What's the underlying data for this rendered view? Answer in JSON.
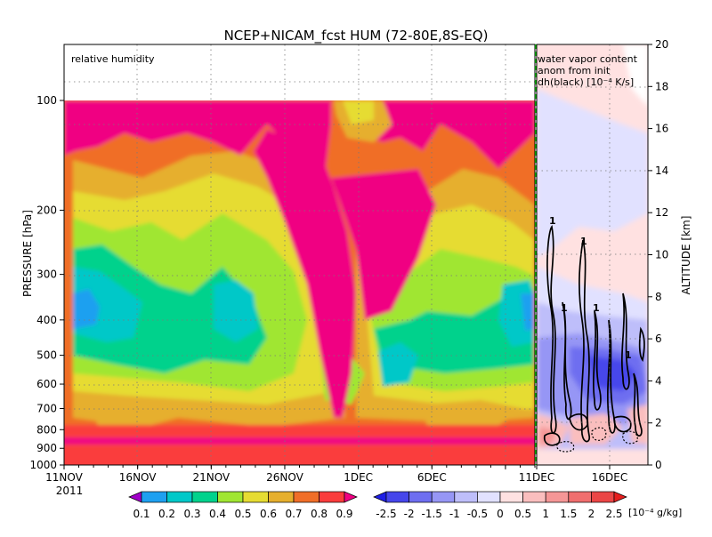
{
  "title": "NCEP+NICAM_fcst HUM (72-80E,8S-EQ)",
  "chart_data": {
    "type": "heatmap",
    "title": "NCEP+NICAM_fcst HUM (72-80E,8S-EQ)",
    "panels": [
      {
        "label": "relative humidity",
        "field": "relative humidity (time-pressure section)",
        "x_ticks": [
          "11NOV",
          "16NOV",
          "21NOV",
          "26NOV",
          "1DEC",
          "6DEC",
          "11DEC"
        ],
        "year": "2011",
        "y_label": "PRESSURE [hPa]",
        "y_ticks": [
          "100",
          "200",
          "300",
          "400",
          "500",
          "600",
          "700",
          "800",
          "900",
          "1000"
        ],
        "ylim": [
          1000,
          100
        ]
      },
      {
        "label_lines": [
          "water vapor content",
          "anom from init",
          "dh(black) [10⁻⁴ K/s]"
        ],
        "field": "water vapor content anomaly from init",
        "x_ticks": [
          "11DEC",
          "16DEC"
        ],
        "y_label": "ALTITUDE [km]",
        "y_ticks": [
          "0",
          "2",
          "4",
          "6",
          "8",
          "10",
          "12",
          "14",
          "16",
          "18",
          "20"
        ],
        "ylim": [
          0,
          20
        ],
        "contour_labels": [
          "1",
          "1",
          "1",
          "1",
          "1"
        ]
      }
    ],
    "colorbars": [
      {
        "name": "relative humidity",
        "levels": [
          "0.1",
          "0.2",
          "0.3",
          "0.4",
          "0.5",
          "0.6",
          "0.7",
          "0.8",
          "0.9"
        ],
        "colors": [
          "#a000c8",
          "#1ea0f0",
          "#00c8c8",
          "#00d28c",
          "#a0e632",
          "#e6dc32",
          "#e6af2d",
          "#f06e28",
          "#fa3c3c",
          "#f00082"
        ]
      },
      {
        "name": "water vapor content anomaly",
        "levels": [
          "-2.5",
          "-2",
          "-1.5",
          "-1",
          "-0.5",
          "0",
          "0.5",
          "1",
          "1.5",
          "2",
          "2.5"
        ],
        "unit": "[10⁻⁴ g/kg]",
        "colors": [
          "#1e1ee6",
          "#4646eb",
          "#6e6ef0",
          "#9696f5",
          "#bebefa",
          "#e1e1ff",
          "#ffe1e1",
          "#fabebe",
          "#f59696",
          "#f06e6e",
          "#eb4646",
          "#e61e1e"
        ]
      }
    ],
    "grid": true
  }
}
